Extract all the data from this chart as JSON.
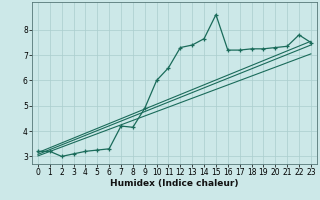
{
  "title": "",
  "xlabel": "Humidex (Indice chaleur)",
  "background_color": "#cce8e8",
  "grid_color": "#aacece",
  "line_color": "#1a6b5a",
  "x_data": [
    0,
    1,
    2,
    3,
    4,
    5,
    6,
    7,
    8,
    9,
    10,
    11,
    12,
    13,
    14,
    15,
    16,
    17,
    18,
    19,
    20,
    21,
    22,
    23
  ],
  "y_main": [
    3.2,
    3.2,
    3.0,
    3.1,
    3.2,
    3.25,
    3.3,
    4.2,
    4.15,
    4.9,
    6.0,
    6.5,
    7.3,
    7.4,
    7.65,
    8.6,
    7.2,
    7.2,
    7.25,
    7.25,
    7.3,
    7.35,
    7.8,
    7.5
  ],
  "trend_lines": [
    [
      3.15,
      7.55
    ],
    [
      3.08,
      7.4
    ],
    [
      3.02,
      7.05
    ]
  ],
  "ylim": [
    2.7,
    9.1
  ],
  "xlim": [
    -0.5,
    23.5
  ],
  "yticks": [
    3,
    4,
    5,
    6,
    7,
    8
  ],
  "xticks": [
    0,
    1,
    2,
    3,
    4,
    5,
    6,
    7,
    8,
    9,
    10,
    11,
    12,
    13,
    14,
    15,
    16,
    17,
    18,
    19,
    20,
    21,
    22,
    23
  ],
  "tick_fontsize": 5.5,
  "xlabel_fontsize": 6.5,
  "xlabel_fontweight": "bold"
}
